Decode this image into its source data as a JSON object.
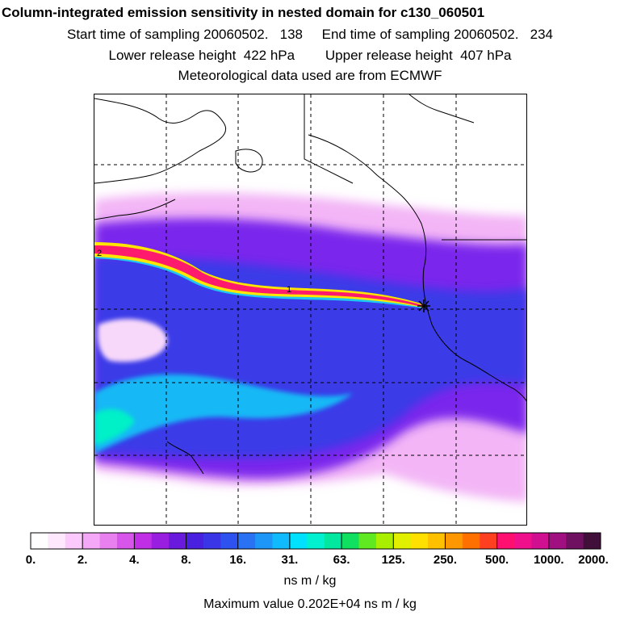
{
  "header": {
    "title": "Column-integrated emission sensitivity in nested domain for c130_060501",
    "line1": "Start time of sampling 20060502.   138     End time of sampling 20060502.   234",
    "line2": "Lower release height  422 hPa        Upper release height  407 hPa",
    "line3": "Meteorological data used are from ECMWF"
  },
  "map": {
    "plume_labels": [
      "2",
      "1"
    ],
    "release_marker": "star"
  },
  "colorbar": {
    "tick_labels": [
      "0.",
      "2.",
      "4.",
      "8.",
      "16.",
      "31.",
      "63.",
      "125.",
      "250.",
      "500.",
      "1000.",
      "2000."
    ],
    "colors": [
      "#ffffff",
      "#fde8fd",
      "#fbc9fb",
      "#f5a8f7",
      "#e880f0",
      "#d855ec",
      "#c02fe6",
      "#9a1ee0",
      "#6a1adc",
      "#4a20e0",
      "#3a36e8",
      "#2e52f0",
      "#2a72f4",
      "#1e96f8",
      "#10bafc",
      "#00e0ff",
      "#00f0d0",
      "#00e8a0",
      "#10e060",
      "#60e820",
      "#a8f000",
      "#e0f000",
      "#ffe000",
      "#ffc000",
      "#ff9800",
      "#ff7000",
      "#ff4020",
      "#ff1070",
      "#f0108c",
      "#d01090",
      "#a01080",
      "#701060",
      "#40103a"
    ],
    "units": "ns m / kg"
  },
  "footer": {
    "max_value": "Maximum value  0.202E+04 ns m / kg"
  },
  "colors": {
    "plume_core": "#ff1a6e",
    "plume_edge": "#ffe600",
    "background_field": "#6a2cf0",
    "low_field": "#f5b8f7",
    "cyan_field": "#10c8f8"
  }
}
